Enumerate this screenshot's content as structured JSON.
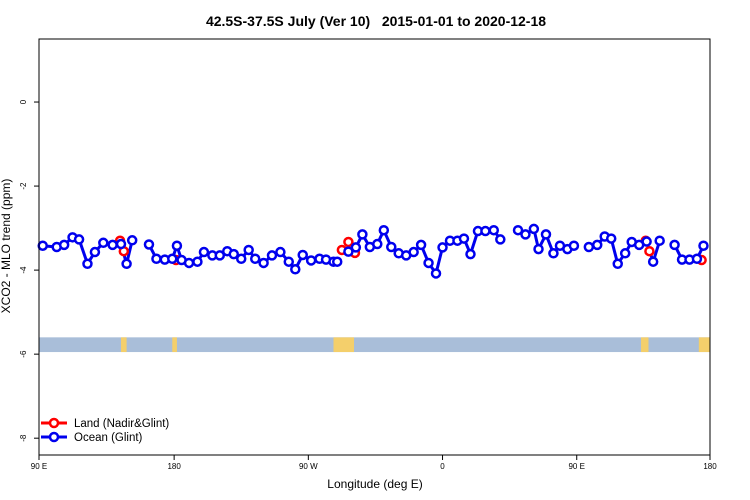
{
  "chart_data": {
    "type": "line",
    "title": "42.5S-37.5S July (Ver 10)   2015-01-01 to 2020-12-18",
    "xlabel": "Longitude (deg E)",
    "ylabel": "XCO2 - MLO trend (ppm)",
    "xlim": [
      90,
      450
    ],
    "ylim": [
      -8.4,
      1.5
    ],
    "x_ticks": [
      {
        "value": 90,
        "label": "90 E"
      },
      {
        "value": 162.5,
        "label": "180"
      },
      {
        "value": 234.5,
        "label": "90 W"
      },
      {
        "value": 306.5,
        "label": "0"
      },
      {
        "value": 378.5,
        "label": "90 E"
      },
      {
        "value": 450,
        "label": "180"
      }
    ],
    "y_ticks": [
      {
        "value": 0,
        "label": "0"
      },
      {
        "value": -2,
        "label": "-2"
      },
      {
        "value": -4,
        "label": "-4"
      },
      {
        "value": -6,
        "label": "-6"
      },
      {
        "value": -8,
        "label": "-8"
      }
    ],
    "legend": {
      "position": "bottom-left",
      "entries": [
        {
          "label": "Land (Nadir&Glint)",
          "color": "#ff0000"
        },
        {
          "label": "Ocean (Glint)",
          "color": "#0000ee"
        }
      ]
    },
    "series": [
      {
        "name": "Ocean (Glint)",
        "color": "#0000ee",
        "segments": [
          [
            [
              92,
              -3.42
            ],
            [
              99.5,
              -3.45
            ],
            [
              103.5,
              -3.4
            ],
            [
              108,
              -3.22
            ],
            [
              111.5,
              -3.27
            ],
            [
              116,
              -3.85
            ],
            [
              120,
              -3.57
            ],
            [
              124.5,
              -3.35
            ],
            [
              129.5,
              -3.4
            ],
            [
              134,
              -3.38
            ],
            [
              137,
              -3.85
            ],
            [
              140,
              -3.29
            ]
          ],
          [
            [
              149,
              -3.39
            ],
            [
              153,
              -3.73
            ],
            [
              157.5,
              -3.75
            ],
            [
              161.5,
              -3.73
            ],
            [
              164,
              -3.42
            ],
            [
              166.5,
              -3.76
            ],
            [
              170.5,
              -3.83
            ],
            [
              175,
              -3.8
            ],
            [
              178.5,
              -3.57
            ],
            [
              183,
              -3.65
            ],
            [
              187,
              -3.65
            ],
            [
              191,
              -3.55
            ],
            [
              194.5,
              -3.62
            ],
            [
              198.5,
              -3.73
            ],
            [
              202.5,
              -3.52
            ],
            [
              206,
              -3.73
            ],
            [
              210.5,
              -3.83
            ],
            [
              215,
              -3.65
            ],
            [
              219.5,
              -3.57
            ],
            [
              224,
              -3.8
            ],
            [
              227.5,
              -3.98
            ],
            [
              231.5,
              -3.64
            ],
            [
              236,
              -3.77
            ],
            [
              240.5,
              -3.73
            ],
            [
              244,
              -3.75
            ],
            [
              248,
              -3.8
            ],
            [
              250,
              -3.8
            ]
          ],
          [
            [
              256,
              -3.56
            ],
            [
              260,
              -3.46
            ],
            [
              263.5,
              -3.15
            ],
            [
              267.5,
              -3.45
            ],
            [
              271.5,
              -3.38
            ],
            [
              275,
              -3.05
            ],
            [
              279,
              -3.45
            ],
            [
              283,
              -3.6
            ],
            [
              287,
              -3.65
            ],
            [
              291,
              -3.57
            ],
            [
              295,
              -3.4
            ],
            [
              299,
              -3.83
            ],
            [
              303,
              -4.08
            ],
            [
              306.5,
              -3.46
            ],
            [
              310.5,
              -3.3
            ],
            [
              314.5,
              -3.3
            ],
            [
              318,
              -3.25
            ],
            [
              321.5,
              -3.62
            ],
            [
              325.5,
              -3.07
            ],
            [
              329.5,
              -3.07
            ],
            [
              334,
              -3.05
            ],
            [
              337.5,
              -3.27
            ]
          ],
          [
            [
              347,
              -3.05
            ],
            [
              351,
              -3.15
            ],
            [
              355.5,
              -3.02
            ],
            [
              358,
              -3.5
            ],
            [
              362,
              -3.15
            ],
            [
              366,
              -3.6
            ],
            [
              369.5,
              -3.42
            ],
            [
              373.5,
              -3.5
            ],
            [
              377,
              -3.42
            ]
          ],
          [
            [
              385,
              -3.45
            ],
            [
              389.5,
              -3.4
            ],
            [
              393.5,
              -3.2
            ],
            [
              397,
              -3.25
            ],
            [
              400.5,
              -3.85
            ],
            [
              404.5,
              -3.6
            ],
            [
              408,
              -3.33
            ],
            [
              412,
              -3.4
            ],
            [
              416,
              -3.32
            ],
            [
              419.5,
              -3.8
            ],
            [
              423,
              -3.3
            ]
          ],
          [
            [
              431,
              -3.4
            ],
            [
              435,
              -3.75
            ],
            [
              439,
              -3.75
            ],
            [
              443,
              -3.73
            ],
            [
              446.5,
              -3.42
            ]
          ]
        ]
      },
      {
        "name": "Land (Nadir&Glint)",
        "color": "#ff0000",
        "points": [
          [
            133.5,
            -3.3
          ],
          [
            135.5,
            -3.55
          ],
          [
            163.5,
            -3.76
          ],
          [
            252.5,
            -3.52
          ],
          [
            256,
            -3.33
          ],
          [
            259.5,
            -3.59
          ],
          [
            415.5,
            -3.3
          ],
          [
            417.5,
            -3.55
          ],
          [
            445.5,
            -3.76
          ]
        ]
      }
    ],
    "land_mask_bar": {
      "y_range": [
        -5.95,
        -5.6
      ],
      "ocean_color": "#a9bed9",
      "land_color": "#f4cf6b",
      "land_spans": [
        [
          134,
          137
        ],
        [
          161.5,
          164
        ],
        [
          248,
          259
        ],
        [
          413,
          417
        ],
        [
          444,
          450
        ]
      ]
    }
  }
}
